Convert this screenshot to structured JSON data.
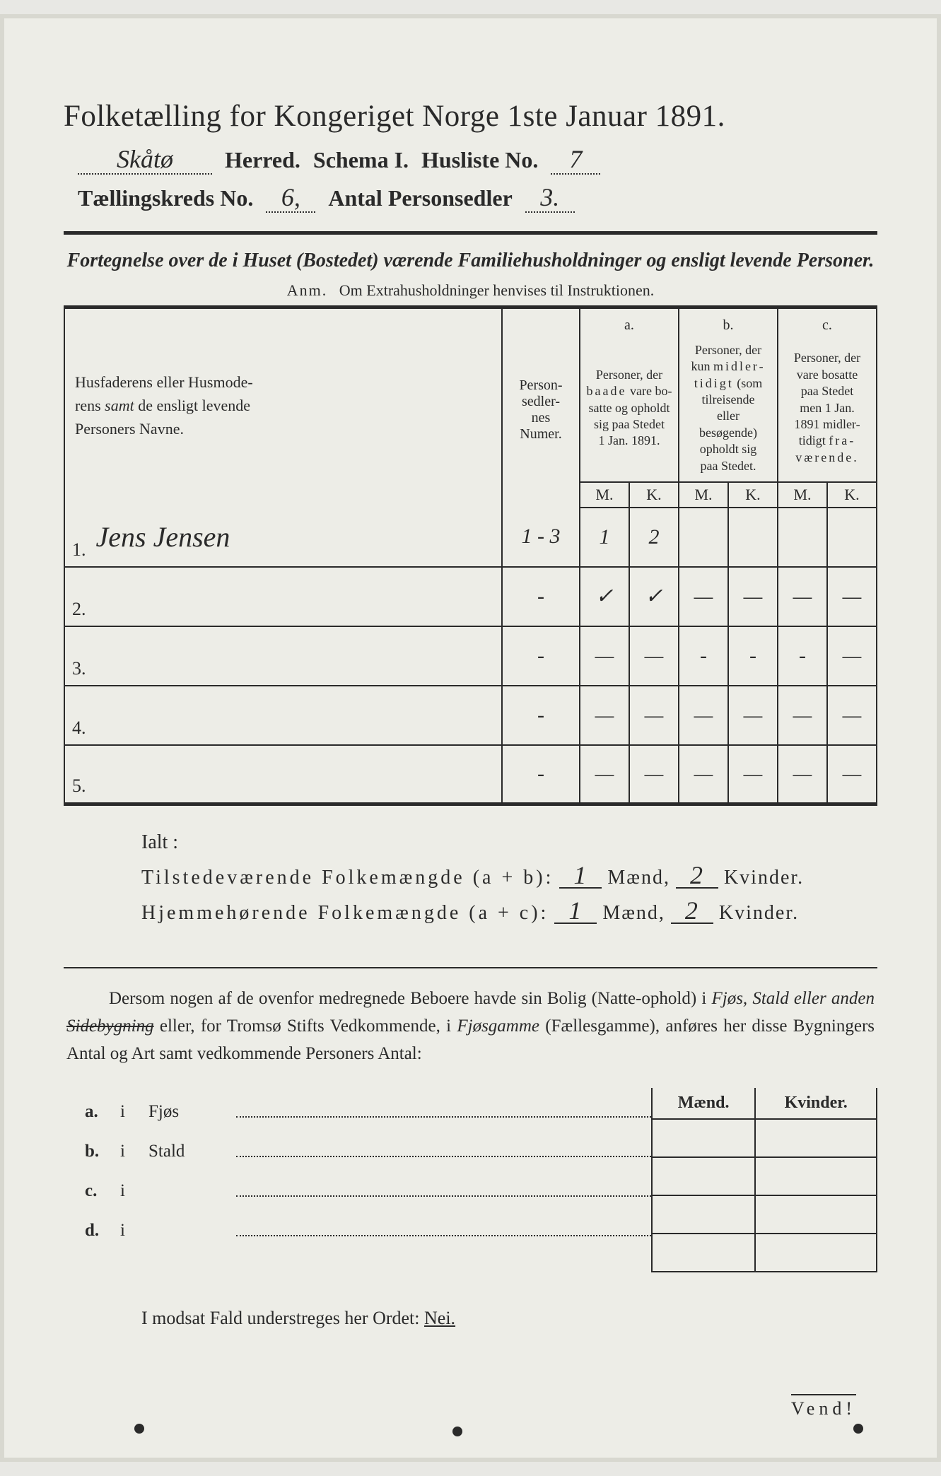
{
  "title": "Folketælling for Kongeriget Norge 1ste Januar 1891.",
  "header": {
    "herred_value": "Skåtø",
    "herred_label": "Herred.",
    "schema_label": "Schema I.",
    "husliste_label": "Husliste No.",
    "husliste_value": "7",
    "kreds_label": "Tællingskreds No.",
    "kreds_value": "6,",
    "antal_label": "Antal Personsedler",
    "antal_value": "3."
  },
  "subtitle": "Fortegnelse over de i Huset (Bostedet) værende Familiehusholdninger og ensligt levende Personer.",
  "anm_label": "Anm.",
  "anm_text": "Om Extrahusholdninger henvises til Instruktionen.",
  "table": {
    "name_head": "Husfaderens eller Husmoderens samt de ensligt levende Personers Navne.",
    "num_head": "Person-sedler-nes Numer.",
    "col_a_label": "a.",
    "col_a_text": "Personer, der baade vare bosatte og opholdt sig paa Stedet 1 Jan. 1891.",
    "col_b_label": "b.",
    "col_b_text": "Personer, der kun midlertidigt (som tilreisende eller besøgende) opholdt sig paa Stedet.",
    "col_c_label": "c.",
    "col_c_text": "Personer, der vare bosatte paa Stedet men 1 Jan. 1891 midlertidigt fraværende.",
    "M": "M.",
    "K": "K.",
    "rows": [
      {
        "n": "1.",
        "name": "Jens Jensen",
        "num": "1 - 3",
        "aM": "1",
        "aK": "2",
        "bM": "",
        "bK": "",
        "cM": "",
        "cK": ""
      },
      {
        "n": "2.",
        "name": "",
        "num": "‑",
        "aM": "✓",
        "aK": "✓",
        "bM": "—",
        "bK": "—",
        "cM": "—",
        "cK": "—"
      },
      {
        "n": "3.",
        "name": "",
        "num": "‑",
        "aM": "—",
        "aK": "—",
        "bM": "‑",
        "bK": "‑",
        "cM": "‑",
        "cK": "—"
      },
      {
        "n": "4.",
        "name": "",
        "num": "‑",
        "aM": "—",
        "aK": "—",
        "bM": "—",
        "bK": "—",
        "cM": "—",
        "cK": "—"
      },
      {
        "n": "5.",
        "name": "",
        "num": "‑",
        "aM": "—",
        "aK": "—",
        "bM": "—",
        "bK": "—",
        "cM": "—",
        "cK": "—"
      }
    ]
  },
  "ialt": {
    "label": "Ialt :",
    "row1_label": "Tilstedeværende Folkemængde (a + b):",
    "row2_label": "Hjemmehørende Folkemængde (a + c):",
    "maend": "Mænd,",
    "kvinder": "Kvinder.",
    "r1m": "1",
    "r1k": "2",
    "r2m": "1",
    "r2k": "2"
  },
  "note": "Dersom nogen af de ovenfor medregnede Beboere havde sin Bolig (Natte-ophold) i Fjøs, Stald eller anden Sidebygning eller, for Tromsø Stifts Vedkommende, i Fjøsgamme (Fællesgamme), anføres her disse Bygningers Antal og Art samt vedkommende Personers Antal:",
  "bottom": {
    "maend": "Mænd.",
    "kvinder": "Kvinder.",
    "rows": [
      {
        "l": "a.",
        "i": "i",
        "name": "Fjøs"
      },
      {
        "l": "b.",
        "i": "i",
        "name": "Stald"
      },
      {
        "l": "c.",
        "i": "i",
        "name": ""
      },
      {
        "l": "d.",
        "i": "i",
        "name": ""
      }
    ]
  },
  "modsat": "I modsat Fald understreges her Ordet:",
  "nei": "Nei.",
  "vend": "Vend!"
}
